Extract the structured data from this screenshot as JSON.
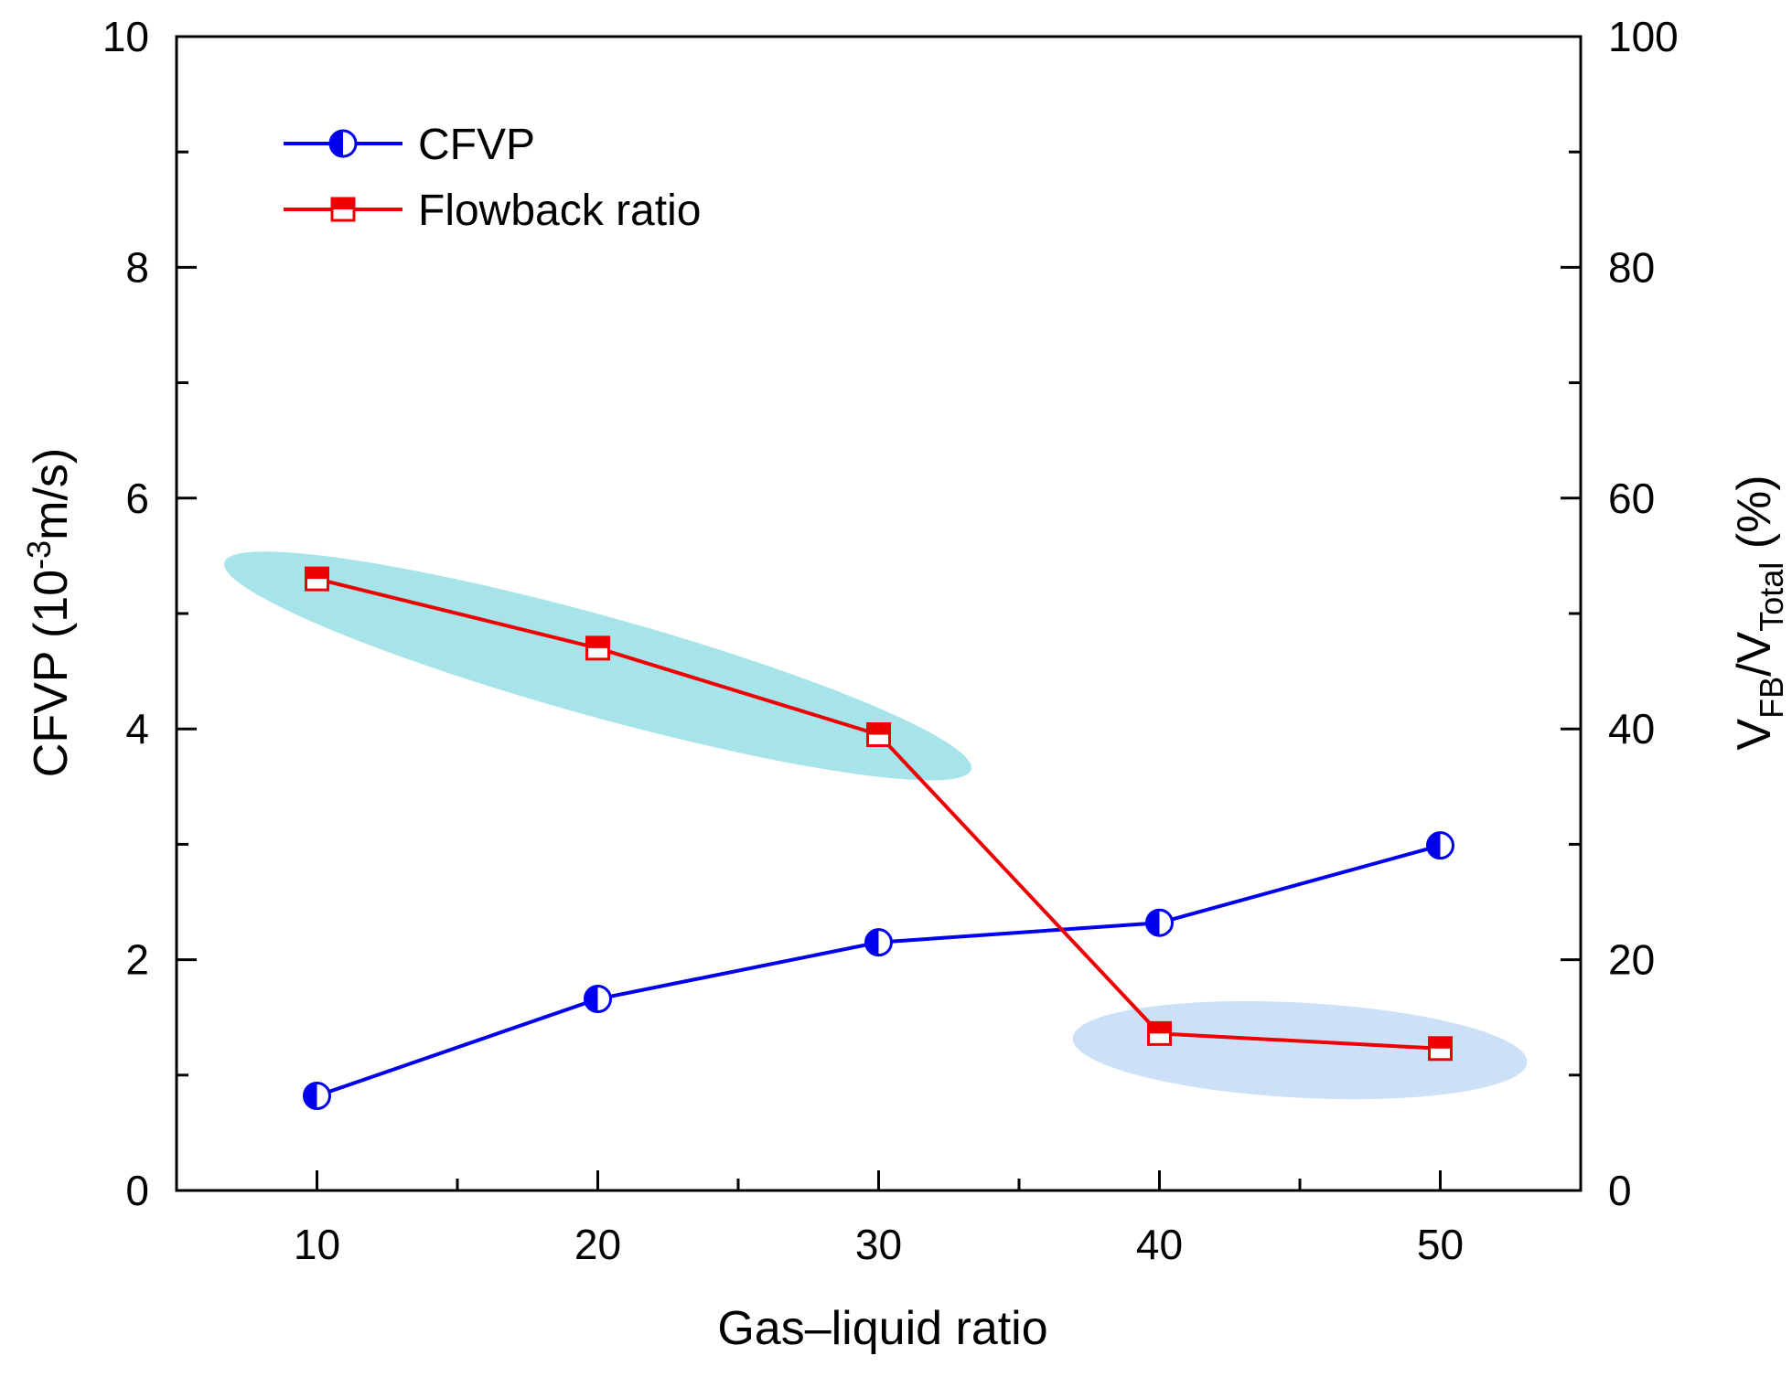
{
  "chart_data": {
    "type": "line",
    "xlabel": "Gas–liquid ratio",
    "x": [
      10,
      20,
      30,
      40,
      50
    ],
    "xlim": [
      5,
      55
    ],
    "xticks": [
      10,
      20,
      30,
      40,
      50
    ],
    "y_left": {
      "label_parts": [
        "CFVP (10",
        "-3",
        "m/s)"
      ],
      "range": [
        0,
        10
      ],
      "ticks": [
        0,
        2,
        4,
        6,
        8,
        10
      ]
    },
    "y_right": {
      "label_parts": [
        "V",
        "FB",
        "/V",
        "Total",
        " (%)"
      ],
      "range": [
        0,
        100
      ],
      "ticks": [
        0,
        20,
        40,
        60,
        80,
        100
      ]
    },
    "series": [
      {
        "name": "CFVP",
        "axis": "left",
        "color": "#0000ee",
        "marker": "half-filled-circle",
        "values": [
          0.82,
          1.66,
          2.15,
          2.32,
          2.99
        ]
      },
      {
        "name": "Flowback ratio",
        "axis": "right",
        "color": "#ee0000",
        "marker": "half-filled-square",
        "values": [
          53.0,
          47.0,
          39.5,
          13.6,
          12.3
        ]
      }
    ],
    "legend": {
      "position": "top-left"
    },
    "highlights": [
      {
        "name": "high-flowback-region",
        "color": "#a6e4ea",
        "covers_x": [
          10,
          30
        ]
      },
      {
        "name": "low-flowback-region",
        "color": "#cce0f7",
        "covers_x": [
          40,
          50
        ]
      }
    ]
  }
}
